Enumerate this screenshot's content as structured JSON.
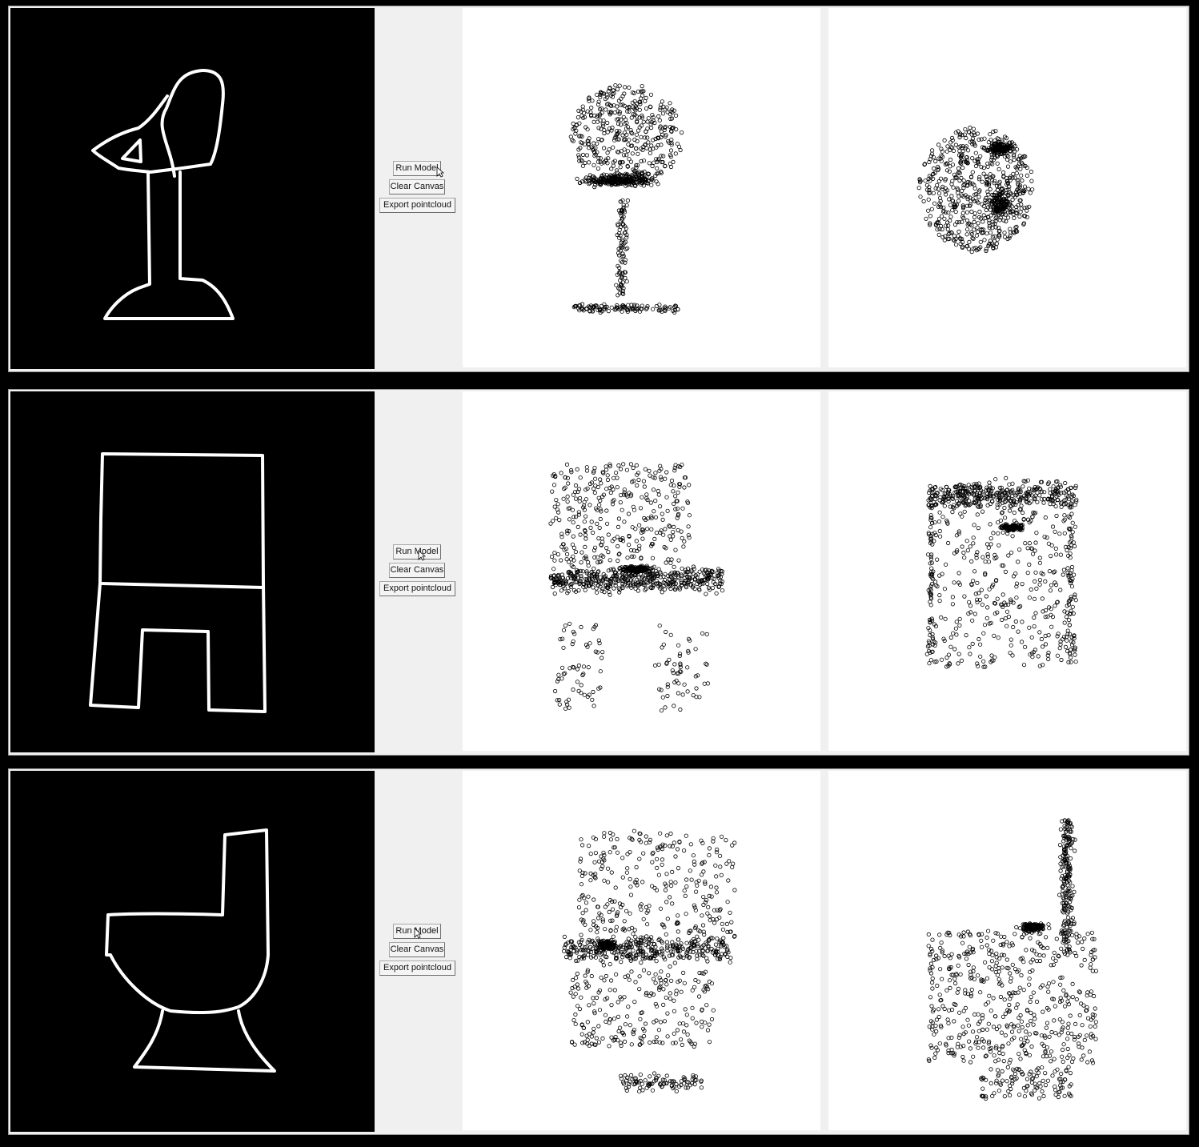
{
  "panels": [
    {
      "buttons": {
        "run": "Run Model",
        "clear": "Clear Canvas",
        "export": "Export pointcloud"
      }
    },
    {
      "buttons": {
        "run": "Run Model",
        "clear": "Clear Canvas",
        "export": "Export pointcloud"
      }
    },
    {
      "buttons": {
        "run": "Run Model",
        "clear": "Clear Canvas",
        "export": "Export pointcloud"
      }
    }
  ],
  "colors": {
    "canvas_bg": "#000000",
    "stroke": "#ffffff",
    "plot_bg": "#ffffff",
    "point": "#000000",
    "window_bg": "#f0f0f0"
  },
  "icons": [
    "mouse-cursor-icon"
  ]
}
